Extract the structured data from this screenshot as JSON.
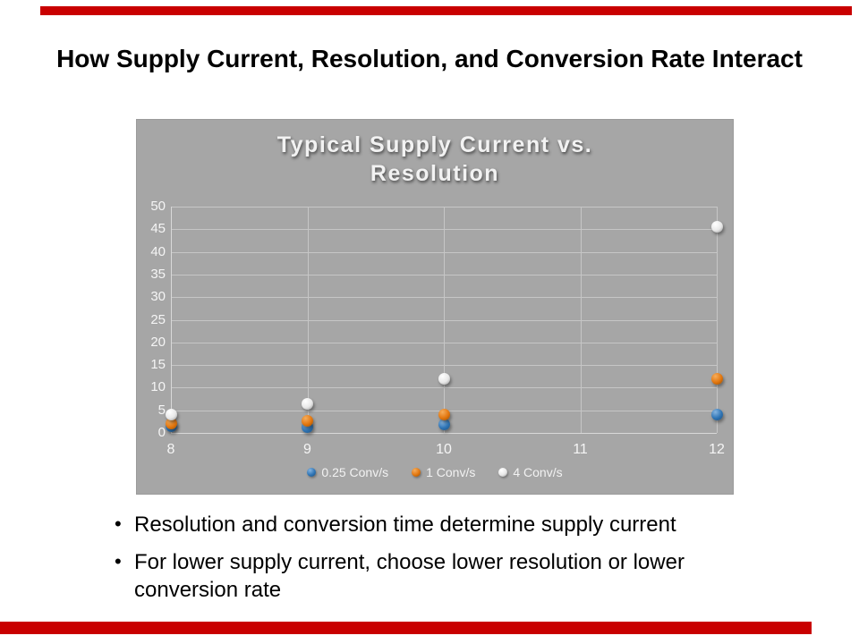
{
  "page": {
    "title": "How Supply Current, Resolution, and Conversion Rate Interact",
    "accent_color": "#c90000"
  },
  "chart": {
    "title_line1": "Typical Supply Current vs.",
    "title_line2": "Resolution",
    "bg_color": "#a6a6a6",
    "grid_color": "#c6c6c6",
    "text_color": "#f2f2f2"
  },
  "chart_data": {
    "type": "scatter",
    "title": "Typical Supply Current vs. Resolution",
    "xlabel": "",
    "ylabel": "",
    "x": [
      8,
      9,
      10,
      12
    ],
    "xticks": [
      8,
      9,
      10,
      11,
      12
    ],
    "xlim": [
      8,
      12
    ],
    "ylim": [
      0,
      50
    ],
    "ytick_step": 5,
    "grid": true,
    "legend_position": "bottom",
    "series": [
      {
        "name": "0.25 Conv/s",
        "values": [
          1.5,
          1.2,
          1.8,
          4
        ],
        "color": "#2e74b5",
        "color_light": "#85b4e0",
        "color_dark": "#1f4e79"
      },
      {
        "name": "1 Conv/s",
        "values": [
          2,
          2.6,
          4,
          12
        ],
        "color": "#e2760e",
        "color_light": "#f5ad5c",
        "color_dark": "#8f4a00"
      },
      {
        "name": "4 Conv/s",
        "values": [
          4,
          6.5,
          12,
          45.5
        ],
        "color": "#e8e8e8",
        "color_light": "#ffffff",
        "color_dark": "#909090"
      }
    ]
  },
  "bullets": [
    "Resolution and conversion time determine supply current",
    "For lower supply current, choose lower resolution or lower conversion rate"
  ]
}
